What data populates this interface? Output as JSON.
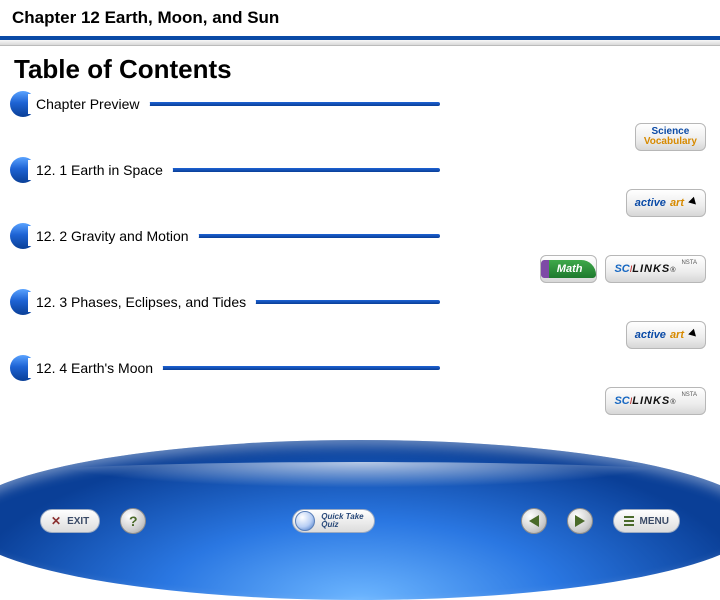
{
  "header": {
    "chapter_title": "Chapter 12  Earth, Moon, and Sun"
  },
  "toc": {
    "title": "Table of Contents",
    "items": [
      {
        "label": "Chapter Preview"
      },
      {
        "label": "12. 1 Earth in Space"
      },
      {
        "label": "12. 2 Gravity and Motion"
      },
      {
        "label": "12. 3 Phases, Eclipses, and Tides"
      },
      {
        "label": "12. 4 Earth's Moon"
      }
    ]
  },
  "resources": {
    "scivocab": {
      "line1": "Science",
      "line2": "Vocabulary"
    },
    "activeart": {
      "part1": "active",
      "part2": "art"
    },
    "math": "Math",
    "scilinks": {
      "part1": "SC",
      "part2": "LINKS",
      "badge": "NSTA"
    }
  },
  "footer": {
    "exit": "EXIT",
    "help": "?",
    "quicktake": {
      "line1": "Quick Take",
      "line2": "Quiz"
    },
    "menu": "MENU"
  },
  "colors": {
    "accent_blue_dark": "#0a3f97",
    "accent_blue": "#1e63d4",
    "accent_blue_light": "#5aa3ff",
    "orange": "#d78a00",
    "green": "#1e7a2e",
    "purple": "#7e4aa6"
  }
}
